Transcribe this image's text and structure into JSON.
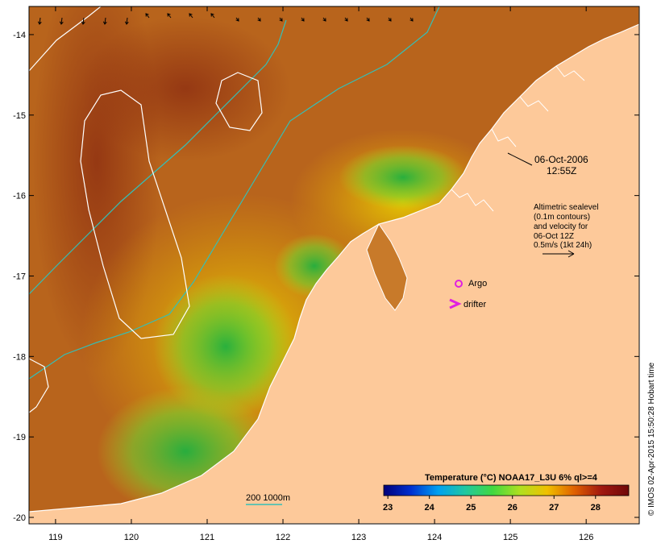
{
  "map": {
    "lon_min": 118.65,
    "lon_max": 126.7,
    "lat_min": -20.08,
    "lat_max": -13.65,
    "x_ticks": [
      "119",
      "120",
      "121",
      "122",
      "123",
      "124",
      "125",
      "126"
    ],
    "y_ticks": [
      "-14",
      "-15",
      "-16",
      "-17",
      "-18",
      "-19",
      "-20"
    ],
    "ocean_color": "#b8641c",
    "land_color": "#fdc99a",
    "contour_color": "#ffffff",
    "isobath_color": "#33c0b8"
  },
  "annotations": {
    "date": "06-Oct-2006",
    "time": "12:55Z",
    "altimetry_lines": [
      "Altimetric sealevel",
      "(0.1m contours)",
      "and velocity for",
      "06-Oct 12Z",
      "0.5m/s (1kt 24h)"
    ]
  },
  "markers": {
    "argo_label": "Argo",
    "argo_color": "#e020e0",
    "drifter_label": "drifter",
    "drifter_color": "#e020e0"
  },
  "bathymetry_legend": {
    "label": "200  1000m"
  },
  "colorbar": {
    "title": "Temperature (°C) NOAA17_L3U 6% ql>=4",
    "min": 22.9,
    "max": 28.8,
    "ticks": [
      "23",
      "24",
      "25",
      "26",
      "27",
      "28"
    ],
    "stops": [
      "#00007a",
      "#0030d0",
      "#00a0f0",
      "#20c8a0",
      "#40d840",
      "#b0e020",
      "#f0c000",
      "#e06000",
      "#a01810",
      "#700808"
    ]
  },
  "credit": "© IMOS 02-Apr-2015 15:50:28 Hobart time"
}
